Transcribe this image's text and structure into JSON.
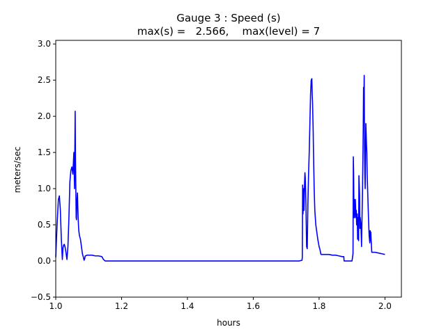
{
  "chart_data": {
    "type": "line",
    "title_line1": "Gauge 3 : Speed (s)",
    "title_line2": "max(s) =   2.566,    max(level) = 7",
    "xlabel": "hours",
    "ylabel": "meters/sec",
    "xlim": [
      1.0,
      2.05
    ],
    "ylim": [
      -0.5,
      3.05
    ],
    "grid": false,
    "xticks": [
      {
        "value": 1.0,
        "label": "1.0"
      },
      {
        "value": 1.2,
        "label": "1.2"
      },
      {
        "value": 1.4,
        "label": "1.4"
      },
      {
        "value": 1.6,
        "label": "1.6"
      },
      {
        "value": 1.8,
        "label": "1.8"
      },
      {
        "value": 2.0,
        "label": "2.0"
      }
    ],
    "yticks": [
      {
        "value": -0.5,
        "label": "−0.5"
      },
      {
        "value": 0.0,
        "label": "0.0"
      },
      {
        "value": 0.5,
        "label": "0.5"
      },
      {
        "value": 1.0,
        "label": "1.0"
      },
      {
        "value": 1.5,
        "label": "1.5"
      },
      {
        "value": 2.0,
        "label": "2.0"
      },
      {
        "value": 2.5,
        "label": "2.5"
      },
      {
        "value": 3.0,
        "label": "3.0"
      }
    ],
    "series": [
      {
        "color": "#0000ff",
        "x": [
          1.0,
          1.004,
          1.008,
          1.011,
          1.014,
          1.017,
          1.02,
          1.022,
          1.024,
          1.026,
          1.028,
          1.031,
          1.034,
          1.037,
          1.04,
          1.043,
          1.046,
          1.049,
          1.052,
          1.055,
          1.057,
          1.059,
          1.06,
          1.061,
          1.062,
          1.063,
          1.064,
          1.066,
          1.067,
          1.068,
          1.069,
          1.07,
          1.072,
          1.075,
          1.078,
          1.081,
          1.084,
          1.086,
          1.088,
          1.089,
          1.09,
          1.095,
          1.1,
          1.11,
          1.12,
          1.13,
          1.14,
          1.145,
          1.15,
          1.2,
          1.3,
          1.4,
          1.5,
          1.6,
          1.7,
          1.74,
          1.748,
          1.749,
          1.75,
          1.751,
          1.752,
          1.753,
          1.754,
          1.756,
          1.757,
          1.758,
          1.76,
          1.762,
          1.764,
          1.766,
          1.768,
          1.77,
          1.772,
          1.774,
          1.776,
          1.778,
          1.779,
          1.78,
          1.781,
          1.782,
          1.783,
          1.785,
          1.787,
          1.79,
          1.793,
          1.796,
          1.8,
          1.803,
          1.805,
          1.806,
          1.81,
          1.82,
          1.83,
          1.84,
          1.85,
          1.86,
          1.87,
          1.875,
          1.876,
          1.9,
          1.903,
          1.904,
          1.905,
          1.906,
          1.907,
          1.908,
          1.91,
          1.912,
          1.913,
          1.914,
          1.916,
          1.917,
          1.918,
          1.919,
          1.92,
          1.921,
          1.922,
          1.923,
          1.924,
          1.925,
          1.927,
          1.929,
          1.93,
          1.932,
          1.934,
          1.935,
          1.936,
          1.937,
          1.938,
          1.939,
          1.94,
          1.941,
          1.942,
          1.943,
          1.944,
          1.945,
          1.946,
          1.948,
          1.95,
          1.952,
          1.954,
          1.955,
          1.956,
          1.957,
          1.958,
          1.96,
          1.97,
          1.98,
          1.99,
          2.0
        ],
        "y": [
          0.05,
          0.5,
          0.85,
          0.9,
          0.7,
          0.3,
          0.02,
          0.18,
          0.22,
          0.23,
          0.2,
          0.12,
          0.02,
          0.2,
          0.6,
          1.1,
          1.25,
          1.3,
          1.2,
          1.5,
          1.0,
          2.07,
          1.4,
          1.0,
          0.6,
          0.57,
          0.8,
          0.94,
          0.75,
          0.6,
          0.5,
          0.42,
          0.35,
          0.3,
          0.2,
          0.1,
          0.05,
          0.01,
          0.03,
          0.06,
          0.07,
          0.08,
          0.08,
          0.08,
          0.07,
          0.07,
          0.06,
          0.02,
          0.0,
          0.0,
          0.0,
          0.0,
          0.0,
          0.0,
          0.0,
          0.0,
          0.01,
          0.05,
          1.05,
          0.65,
          0.75,
          1.0,
          0.7,
          1.1,
          1.22,
          1.15,
          0.8,
          0.2,
          0.17,
          0.8,
          1.2,
          1.5,
          1.9,
          2.3,
          2.5,
          2.52,
          2.3,
          2.2,
          2.0,
          1.8,
          1.5,
          1.0,
          0.7,
          0.5,
          0.4,
          0.3,
          0.2,
          0.15,
          0.1,
          0.09,
          0.09,
          0.09,
          0.09,
          0.08,
          0.08,
          0.07,
          0.06,
          0.06,
          0.0,
          0.0,
          0.1,
          1.44,
          1.2,
          0.6,
          0.85,
          0.6,
          0.85,
          0.6,
          0.7,
          0.5,
          0.65,
          0.3,
          0.6,
          0.6,
          0.28,
          1.18,
          1.05,
          0.9,
          0.45,
          0.6,
          0.5,
          0.2,
          0.5,
          1.0,
          1.8,
          2.4,
          2.2,
          2.566,
          1.6,
          1.2,
          1.0,
          1.5,
          1.9,
          1.75,
          1.6,
          1.5,
          1.2,
          0.9,
          0.6,
          0.35,
          0.25,
          0.42,
          0.28,
          0.4,
          0.3,
          0.12,
          0.12,
          0.11,
          0.1,
          0.09
        ]
      }
    ]
  }
}
